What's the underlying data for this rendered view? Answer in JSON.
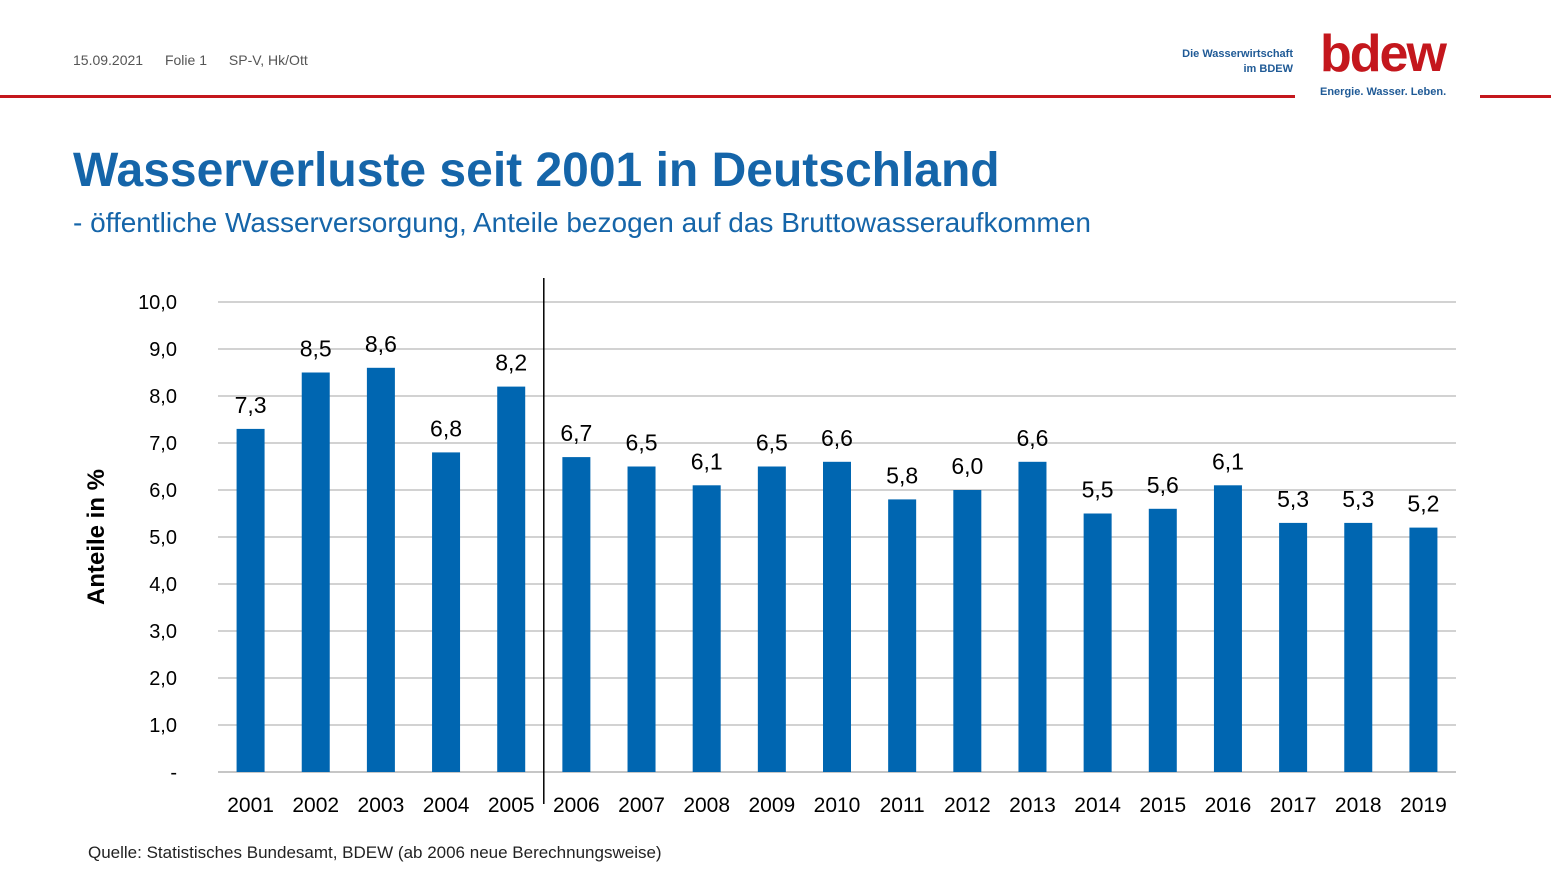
{
  "header": {
    "date": "15.09.2021",
    "slide": "Folie 1",
    "author": "SP-V, Hk/Ott",
    "org_line1": "Die Wasserwirtschaft",
    "org_line2": "im BDEW",
    "logo_text": "bdew",
    "logo_tagline": "Energie. Wasser. Leben."
  },
  "colors": {
    "bar": "#0066b1",
    "title": "#1565a9",
    "accent": "#c4171d",
    "grid": "#a6a6a6"
  },
  "title": "Wasserverluste seit 2001 in Deutschland",
  "subtitle": "- öffentliche Wasserversorgung, Anteile bezogen auf das Bruttowasseraufkommen",
  "source": "Quelle: Statistisches Bundesamt, BDEW (ab 2006 neue Berechnungsweise)",
  "chart_data": {
    "type": "bar",
    "categories": [
      "2001",
      "2002",
      "2003",
      "2004",
      "2005",
      "2006",
      "2007",
      "2008",
      "2009",
      "2010",
      "2011",
      "2012",
      "2013",
      "2014",
      "2015",
      "2016",
      "2017",
      "2018",
      "2019"
    ],
    "values": [
      7.3,
      8.5,
      8.6,
      6.8,
      8.2,
      6.7,
      6.5,
      6.1,
      6.5,
      6.6,
      5.8,
      6.0,
      6.6,
      5.5,
      5.6,
      6.1,
      5.3,
      5.3,
      5.2
    ],
    "value_labels": [
      "7,3",
      "8,5",
      "8,6",
      "6,8",
      "8,2",
      "6,7",
      "6,5",
      "6,1",
      "6,5",
      "6,6",
      "5,8",
      "6,0",
      "6,6",
      "5,5",
      "5,6",
      "6,1",
      "5,3",
      "5,3",
      "5,2"
    ],
    "yticks": [
      "-",
      "1,0",
      "2,0",
      "3,0",
      "4,0",
      "5,0",
      "6,0",
      "7,0",
      "8,0",
      "9,0",
      "10,0"
    ],
    "ylim": [
      0,
      10
    ],
    "ylabel": "Anteile in %",
    "xlabel": "",
    "grid": true,
    "separator_after": "2005"
  }
}
